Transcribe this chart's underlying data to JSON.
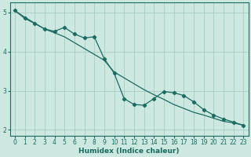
{
  "xlabel": "Humidex (Indice chaleur)",
  "bg_color": "#cce8e0",
  "grid_color": "#a8ccc4",
  "line_color": "#1a6b60",
  "xlim": [
    -0.5,
    23.5
  ],
  "ylim": [
    1.85,
    5.25
  ],
  "yticks": [
    2,
    3,
    4,
    5
  ],
  "xticks": [
    0,
    1,
    2,
    3,
    4,
    5,
    6,
    7,
    8,
    9,
    10,
    11,
    12,
    13,
    14,
    15,
    16,
    17,
    18,
    19,
    20,
    21,
    22,
    23
  ],
  "line1_x": [
    0,
    1,
    2,
    3,
    4,
    5,
    6,
    7,
    8,
    9,
    10,
    11,
    12,
    13,
    14,
    15,
    16,
    17,
    18,
    19,
    20,
    21,
    22,
    23
  ],
  "line1_y": [
    5.05,
    4.88,
    4.73,
    4.58,
    4.48,
    4.38,
    4.23,
    4.08,
    3.93,
    3.78,
    3.48,
    3.33,
    3.18,
    3.03,
    2.9,
    2.78,
    2.65,
    2.55,
    2.45,
    2.38,
    2.3,
    2.22,
    2.18,
    2.12
  ],
  "line2_x": [
    0,
    1,
    2,
    3,
    4,
    5,
    6,
    7,
    8,
    9,
    10,
    11,
    12,
    13,
    14,
    15,
    16,
    17,
    18,
    19,
    20,
    21,
    22,
    23
  ],
  "line2_y": [
    5.05,
    4.85,
    4.72,
    4.58,
    4.52,
    4.62,
    4.45,
    4.35,
    4.38,
    3.82,
    3.45,
    2.8,
    2.65,
    2.63,
    2.8,
    2.98,
    2.95,
    2.88,
    2.72,
    2.52,
    2.38,
    2.28,
    2.2,
    2.12
  ]
}
